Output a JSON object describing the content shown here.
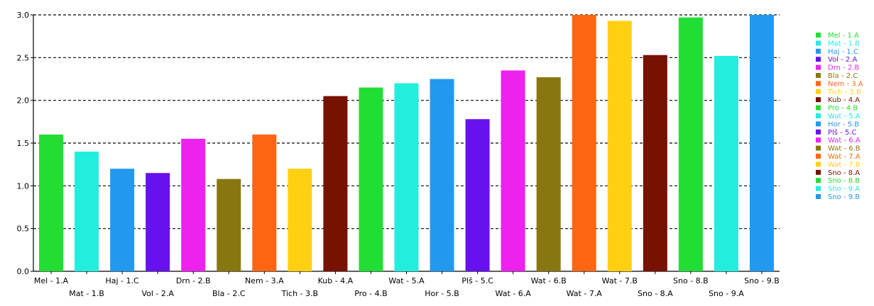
{
  "chart_data": {
    "type": "bar",
    "ylim": [
      0,
      3.0
    ],
    "y_ticks": [
      "0.0",
      "0.5",
      "1.0",
      "1.5",
      "2.0",
      "2.5",
      "3.0"
    ],
    "grid": "horizontal dashed",
    "legend_placement": "right",
    "categories": [
      "Mel - 1.A",
      "Mat - 1.B",
      "Haj - 1.C",
      "Vol - 2.A",
      "Drn - 2.B",
      "Bla - 2.C",
      "Nem - 3.A",
      "Tich - 3.B",
      "Kub - 4.A",
      "Pro - 4.B",
      "Wat - 5.A",
      "Hor - 5.B",
      "Plš - 5.C",
      "Wat - 6.A",
      "Wat - 6.B",
      "Wat - 7.A",
      "Wat - 7.B",
      "Sno - 8.A",
      "Sno - 8.B",
      "Sno - 9.A",
      "Sno - 9.B"
    ],
    "values": [
      1.6,
      1.4,
      1.2,
      1.15,
      1.55,
      1.08,
      1.6,
      1.2,
      2.05,
      2.15,
      2.2,
      2.25,
      1.78,
      2.35,
      2.27,
      3.0,
      2.93,
      2.53,
      2.97,
      2.52,
      3.0
    ],
    "colors": [
      "#22dd33",
      "#22eedd",
      "#2299ee",
      "#6611ee",
      "#ee22ee",
      "#887711",
      "#ff6611",
      "#ffd011",
      "#771100",
      "#22dd33",
      "#22eedd",
      "#2299ee",
      "#6611ee",
      "#ee22ee",
      "#887711",
      "#ff6611",
      "#ffd011",
      "#771100",
      "#22dd33",
      "#22eedd",
      "#2299ee"
    ]
  }
}
